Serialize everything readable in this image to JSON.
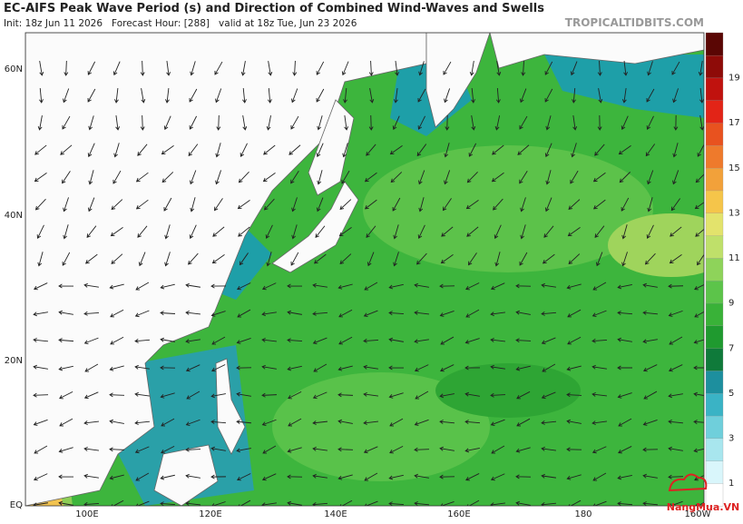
{
  "header": {
    "title": "EC-AIFS Peak Wave Period (s) and Direction of Combined Wind-Waves and Swells",
    "subtitle": "Init: 18z Jun 11 2026   Forecast Hour: [288]   valid at 18z Tue, Jun 23 2026",
    "watermark": "TROPICALTIDBITS.COM"
  },
  "map": {
    "lat_labels": [
      "60N",
      "40N",
      "20N",
      "EQ"
    ],
    "lon_labels": [
      "100E",
      "120E",
      "140E",
      "160E",
      "180",
      "160W"
    ]
  },
  "colorbar": {
    "labels": [
      "19",
      "17",
      "15",
      "13",
      "11",
      "9",
      "7",
      "5",
      "3",
      "1"
    ]
  },
  "logo": {
    "text": "NangMua.VN"
  }
}
